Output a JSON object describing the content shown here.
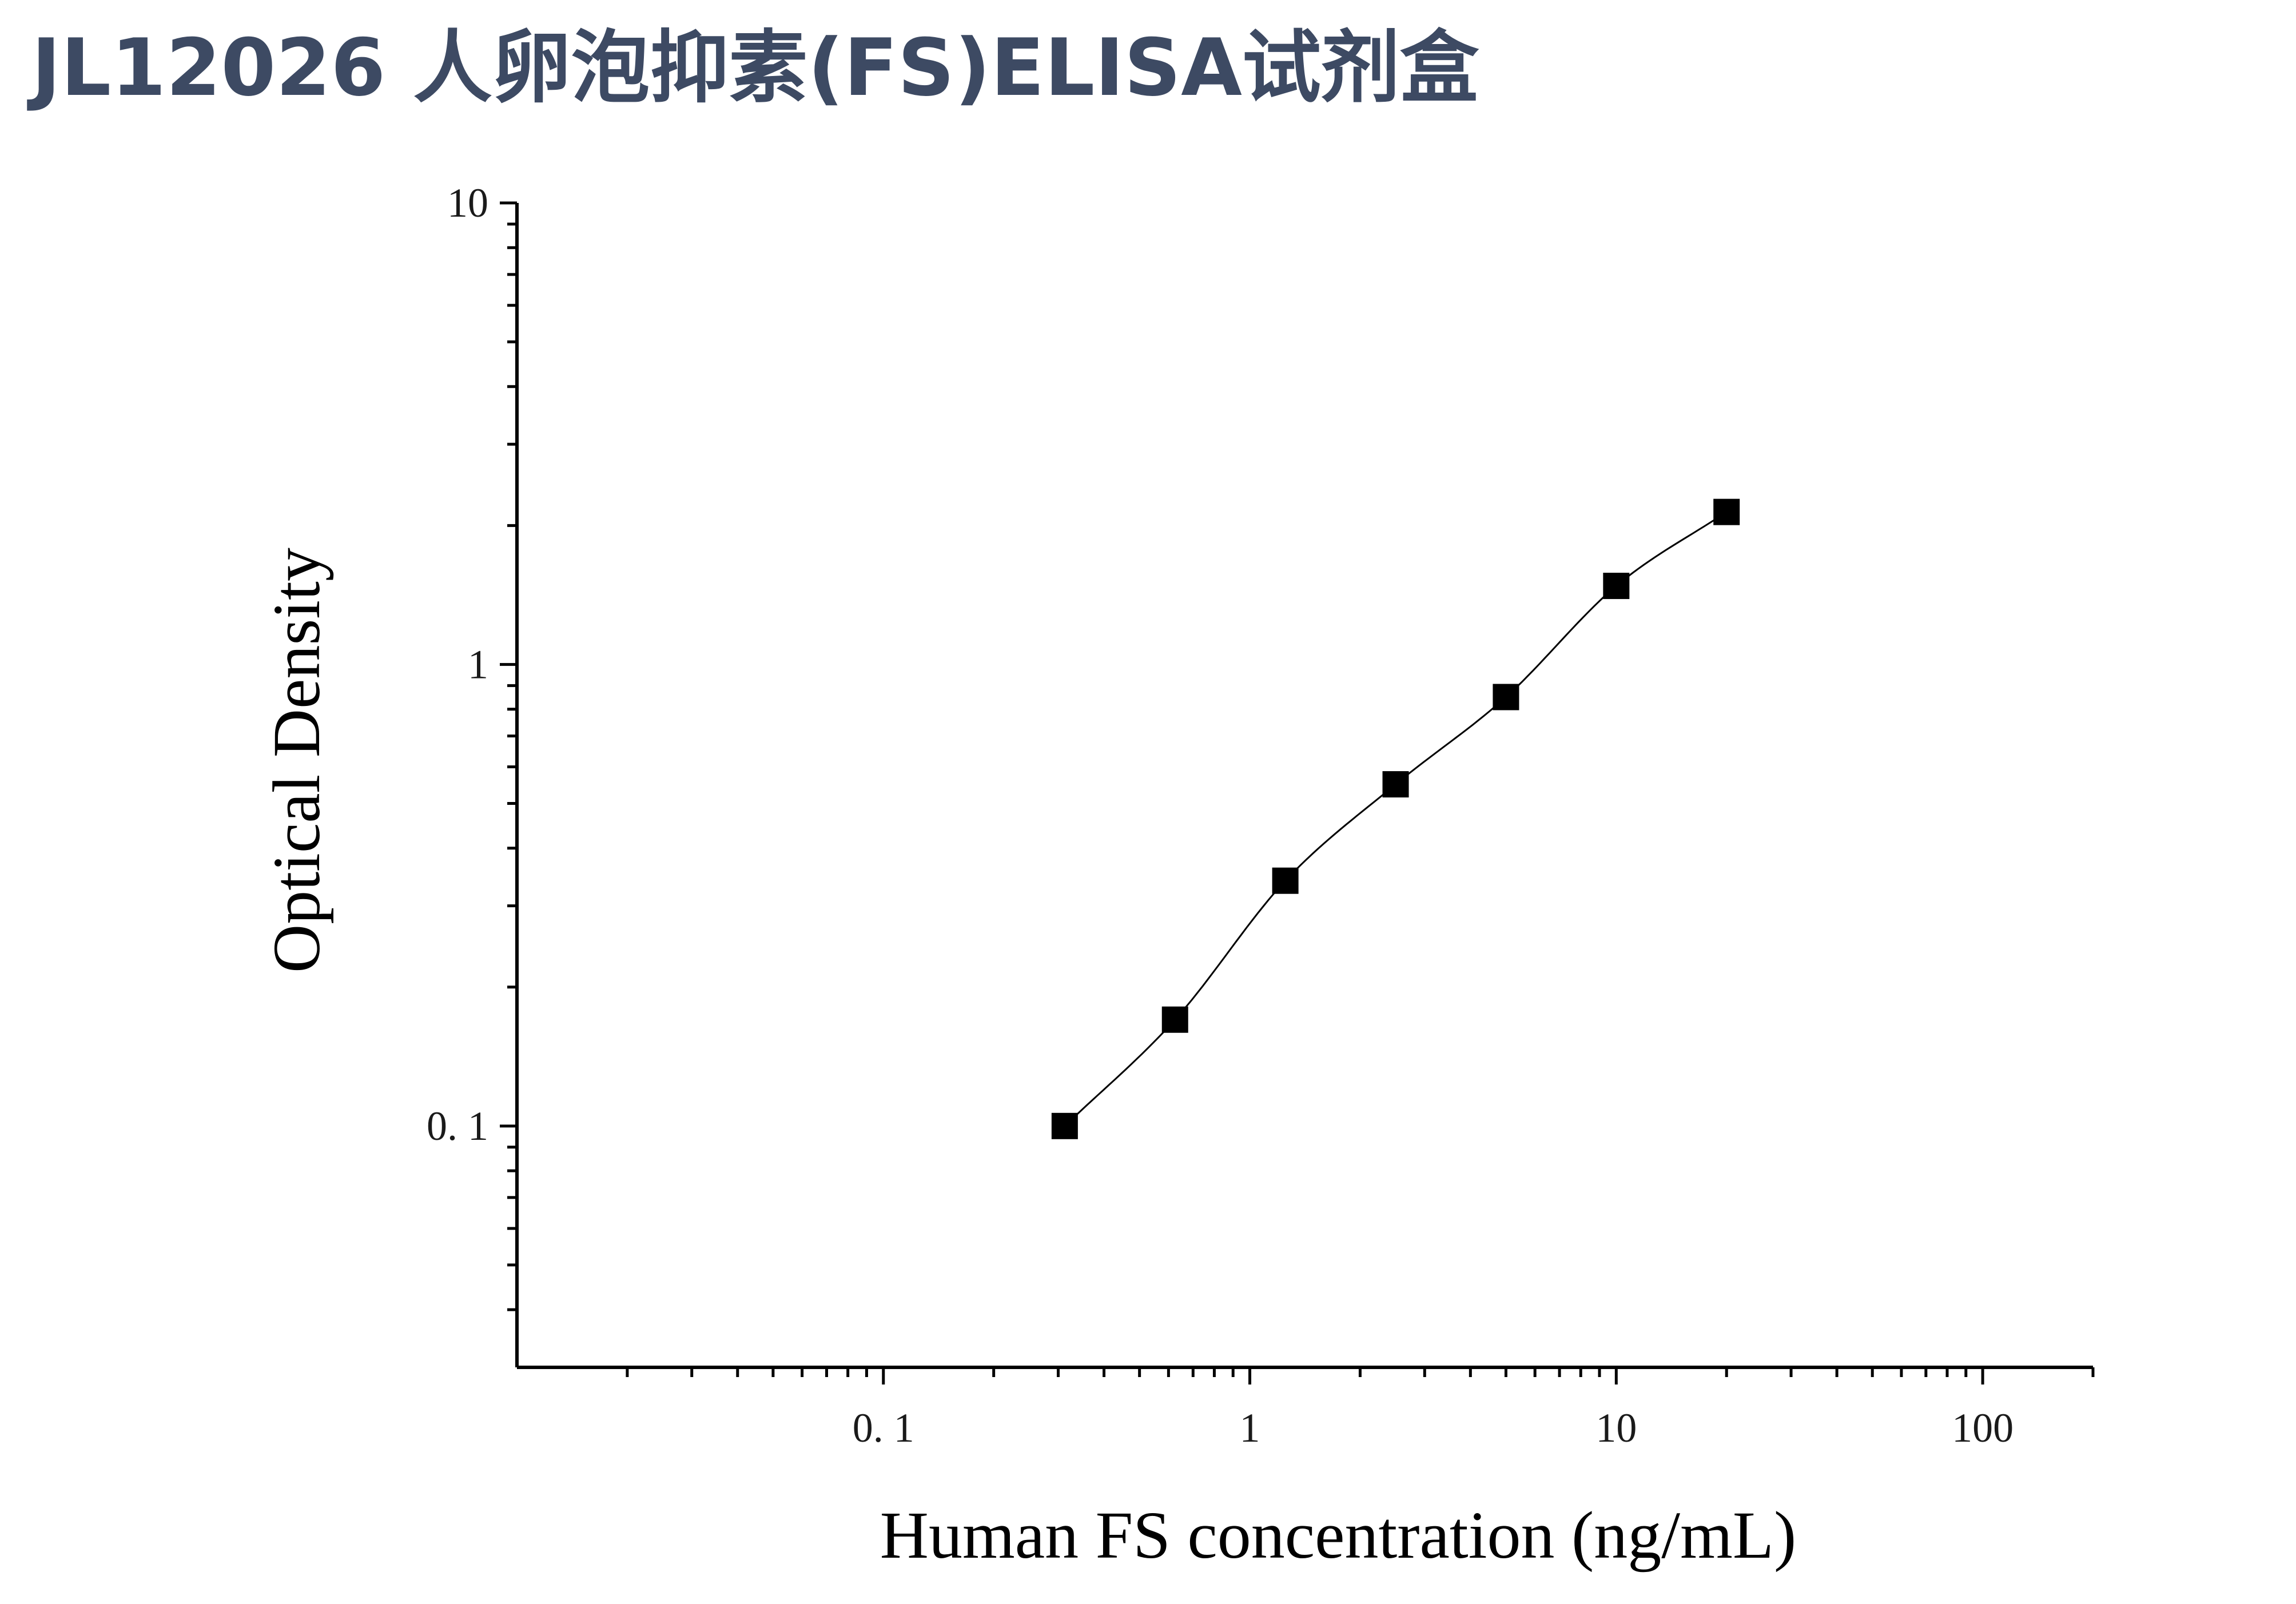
{
  "title": "JL12026 人卵泡抑素(FS)ELISA试剂盒",
  "colors": {
    "title": "#3d4a63",
    "axis": "#000000",
    "marker": "#000000",
    "curve": "#000000"
  },
  "chart_data": {
    "type": "scatter",
    "xlabel": "Human FS concentration (ng/mL)",
    "ylabel": "Optical Density",
    "x_scale": "log",
    "y_scale": "log",
    "xlim": [
      0.01,
      200
    ],
    "ylim": [
      0.03,
      10
    ],
    "x_ticks": [
      {
        "value": 0.1,
        "label": "0. 1"
      },
      {
        "value": 1,
        "label": "1"
      },
      {
        "value": 10,
        "label": "10"
      },
      {
        "value": 100,
        "label": "100"
      }
    ],
    "y_ticks": [
      {
        "value": 0.1,
        "label": "0. 1"
      },
      {
        "value": 1,
        "label": "1"
      },
      {
        "value": 10,
        "label": "10"
      }
    ],
    "grid": false,
    "legend": "none",
    "marker": "square",
    "series": [
      {
        "x": [
          0.3125,
          0.625,
          1.25,
          2.5,
          5,
          10,
          20
        ],
        "y": [
          0.1,
          0.17,
          0.34,
          0.55,
          0.85,
          1.48,
          2.14
        ]
      }
    ],
    "fit_curve": true
  }
}
